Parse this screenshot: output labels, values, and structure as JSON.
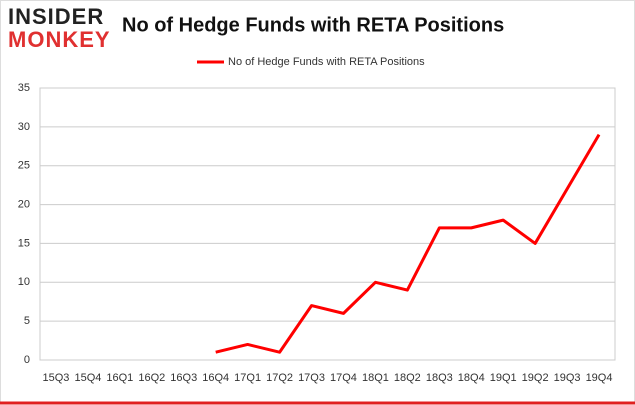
{
  "brand": {
    "line1": "INSIDER",
    "line2": "MONKEY"
  },
  "chart_data": {
    "type": "line",
    "title": "No of Hedge Funds with RETA Positions",
    "categories": [
      "15Q3",
      "15Q4",
      "16Q1",
      "16Q2",
      "16Q3",
      "16Q4",
      "17Q1",
      "17Q2",
      "17Q3",
      "17Q4",
      "18Q1",
      "18Q2",
      "18Q3",
      "18Q4",
      "19Q1",
      "19Q2",
      "19Q3",
      "19Q4"
    ],
    "series": [
      {
        "name": "No of Hedge Funds with RETA Positions",
        "color": "#ff0000",
        "values": [
          null,
          null,
          null,
          null,
          null,
          1,
          2,
          1,
          7,
          6,
          10,
          9,
          17,
          17,
          18,
          15,
          22,
          29
        ]
      }
    ],
    "ylim": [
      0,
      35
    ],
    "yticks": [
      0,
      5,
      10,
      15,
      20,
      25,
      30,
      35
    ],
    "grid": true,
    "legend": "top"
  }
}
